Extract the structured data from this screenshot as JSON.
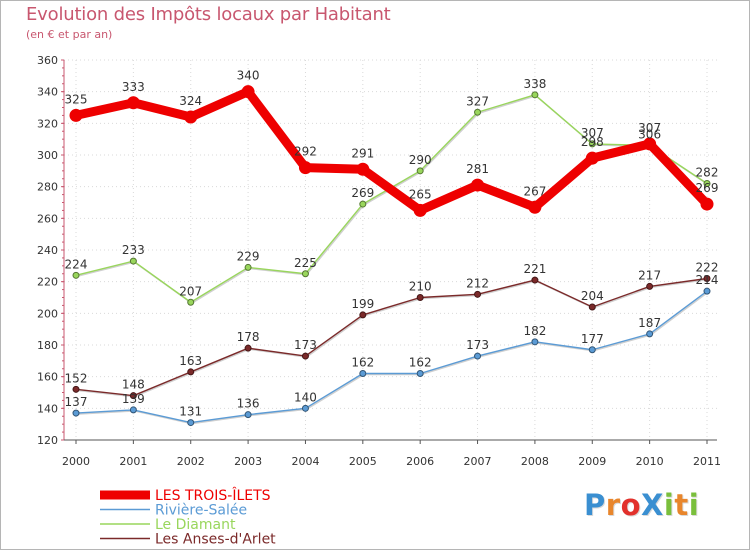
{
  "title": "Evolution des Impôts locaux par Habitant",
  "subtitle": "(en € et par an)",
  "logo_text": "ProXiti",
  "logo_colors": [
    "#3a8fd1",
    "#e8862c",
    "#e2312c",
    "#3a8fd1",
    "#7abf3c",
    "#e8862c",
    "#7abf3c"
  ],
  "chart_data": {
    "type": "line",
    "title": "Evolution des Impôts locaux par Habitant",
    "subtitle": "(en € et par an)",
    "xlabel": "",
    "ylabel": "",
    "categories": [
      "2000",
      "2001",
      "2002",
      "2003",
      "2004",
      "2005",
      "2006",
      "2007",
      "2008",
      "2009",
      "2010",
      "2011"
    ],
    "y_ticks": [
      "120",
      "140",
      "160",
      "180",
      "200",
      "220",
      "240",
      "260",
      "280",
      "300",
      "320",
      "340",
      "360"
    ],
    "ylim": [
      120,
      360
    ],
    "grid": true,
    "legend_position": "bottom-left",
    "series": [
      {
        "name": "Rivière-Salée",
        "color": "#5b9bd5",
        "values": [
          137,
          139,
          131,
          136,
          140,
          162,
          162,
          173,
          182,
          177,
          187,
          214
        ],
        "labels": [
          "137",
          "139",
          "131",
          "136",
          "140",
          "162",
          "162",
          "173",
          "182",
          "177",
          "187",
          "214"
        ]
      },
      {
        "name": "Les Anses-d'Arlet",
        "color": "#7b2a2a",
        "values": [
          152,
          148,
          163,
          178,
          173,
          199,
          210,
          212,
          221,
          204,
          217,
          222
        ],
        "labels": [
          "152",
          "148",
          "163",
          "178",
          "173",
          "199",
          "210",
          "212",
          "221",
          "204",
          "217",
          "222"
        ]
      },
      {
        "name": "Le Diamant",
        "color": "#99d65c",
        "values": [
          224,
          233,
          207,
          229,
          225,
          269,
          290,
          327,
          338,
          307,
          306,
          282
        ],
        "labels": [
          "224",
          "233",
          "207",
          "229",
          "225",
          "269",
          "290",
          "327",
          "338",
          "307",
          "306",
          "282"
        ]
      },
      {
        "name": "LES TROIS-ÎLETS",
        "color": "#ee0000",
        "values": [
          325,
          333,
          324,
          340,
          292,
          291,
          265,
          281,
          267,
          298,
          307,
          269
        ],
        "labels": [
          "325",
          "333",
          "324",
          "340",
          "292",
          "291",
          "265",
          "281",
          "267",
          "298",
          "307",
          "269"
        ]
      }
    ],
    "legend": [
      "LES TROIS-ÎLETS",
      "Rivière-Salée",
      "Le Diamant",
      "Les Anses-d'Arlet"
    ]
  }
}
